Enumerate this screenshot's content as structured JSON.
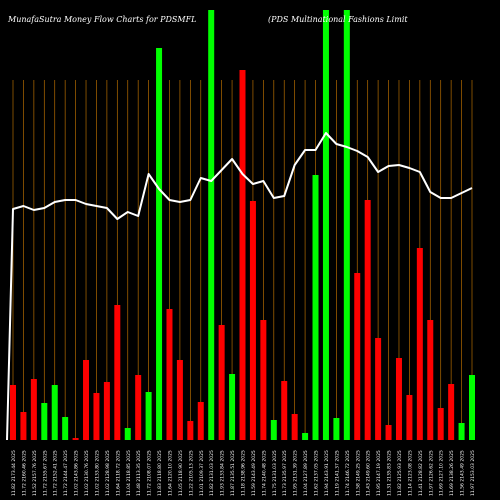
{
  "chart_data": {
    "type": "bar",
    "title": "MunafaSutra  Money Flow  Charts for PDSMFL",
    "subtitle": "(PDS Multinational Fashions Limit",
    "colors": {
      "background": "#000000",
      "up": "#00ff00",
      "down": "#ff0000",
      "grid": "#b36b00",
      "line": "#ffffff"
    },
    "grid": true,
    "ylim": [
      0,
      430
    ],
    "categories": [
      "11.82 2173.44 2025",
      "11.72 2160.46 2025",
      "11.52 2157.76 2025",
      "11.72 2155.67 2025",
      "11.72 2152.41 2025",
      "11.72 2144.47 2025",
      "11.02 2143.86 2025",
      "11.02 2130.76 2025",
      "11.02 2133.80 2025",
      "11.02 2128.98 2025",
      "11.64 2118.72 2025",
      "11.04 2118.85 2025",
      "11.48 2113.35 2025",
      "11.72 2108.07 2025",
      "11.83 2118.80 2025",
      "11.64 2120.10 2025",
      "11.05 2118.90 2025",
      "11.22 2105.13 2025",
      "11.01 2109.37 2025",
      "11.82 2131.03 2025",
      "11.93 2133.84 2025",
      "11.87 2135.51 2025",
      "11.18 2138.96 2025",
      "11.59 2143.49 2025",
      "11.74 2140.48 2025",
      "11.75 2131.03 2025",
      "11.73 2135.97 2025",
      "11.95 2131.39 2025",
      "11.04 2127.89 2025",
      "11.62 2137.05 2025",
      "11.94 2143.91 2025",
      "11.19 2141.37 2025",
      "11.74 2146.72 2025",
      "11.58 2149.25 2025",
      "11.43 2149.60 2025",
      "11.95 2147.19 2025",
      "11.31 2135.83 2025",
      "11.82 2125.93 2025",
      "11.14 2123.08 2025",
      "11.41 2128.82 2025",
      "11.97 2126.62 2025",
      "11.69 2127.10 2025",
      "11.69 2138.26 2025",
      "11.56 2143.49 2025",
      "11.97 2153.03 2025"
    ],
    "values": [
      55,
      28,
      61,
      37,
      55,
      23,
      2,
      80,
      47,
      58,
      135,
      12,
      65,
      48,
      392,
      131,
      80,
      19,
      38,
      430,
      115,
      66,
      370,
      239,
      120,
      20,
      59,
      26,
      7,
      265,
      430,
      22,
      430,
      167,
      240,
      102,
      15,
      82,
      45,
      192,
      120,
      32,
      56,
      17,
      65
    ],
    "directions": [
      "down",
      "down",
      "down",
      "up",
      "up",
      "up",
      "down",
      "down",
      "down",
      "down",
      "down",
      "up",
      "down",
      "up",
      "up",
      "down",
      "down",
      "down",
      "down",
      "up",
      "down",
      "up",
      "down",
      "down",
      "down",
      "up",
      "down",
      "down",
      "up",
      "up",
      "up",
      "up",
      "up",
      "down",
      "down",
      "down",
      "down",
      "down",
      "down",
      "down",
      "down",
      "down",
      "down",
      "up",
      "up"
    ],
    "line": [
      231,
      234,
      230,
      232,
      238,
      240,
      240,
      236,
      234,
      232,
      221,
      228,
      224,
      266,
      251,
      240,
      238,
      240,
      262,
      259,
      270,
      281,
      266,
      256,
      259,
      242,
      244,
      275,
      290,
      290,
      307,
      296,
      293,
      289,
      283,
      268,
      274,
      275,
      272,
      268,
      248,
      242,
      242,
      247,
      252
    ]
  }
}
